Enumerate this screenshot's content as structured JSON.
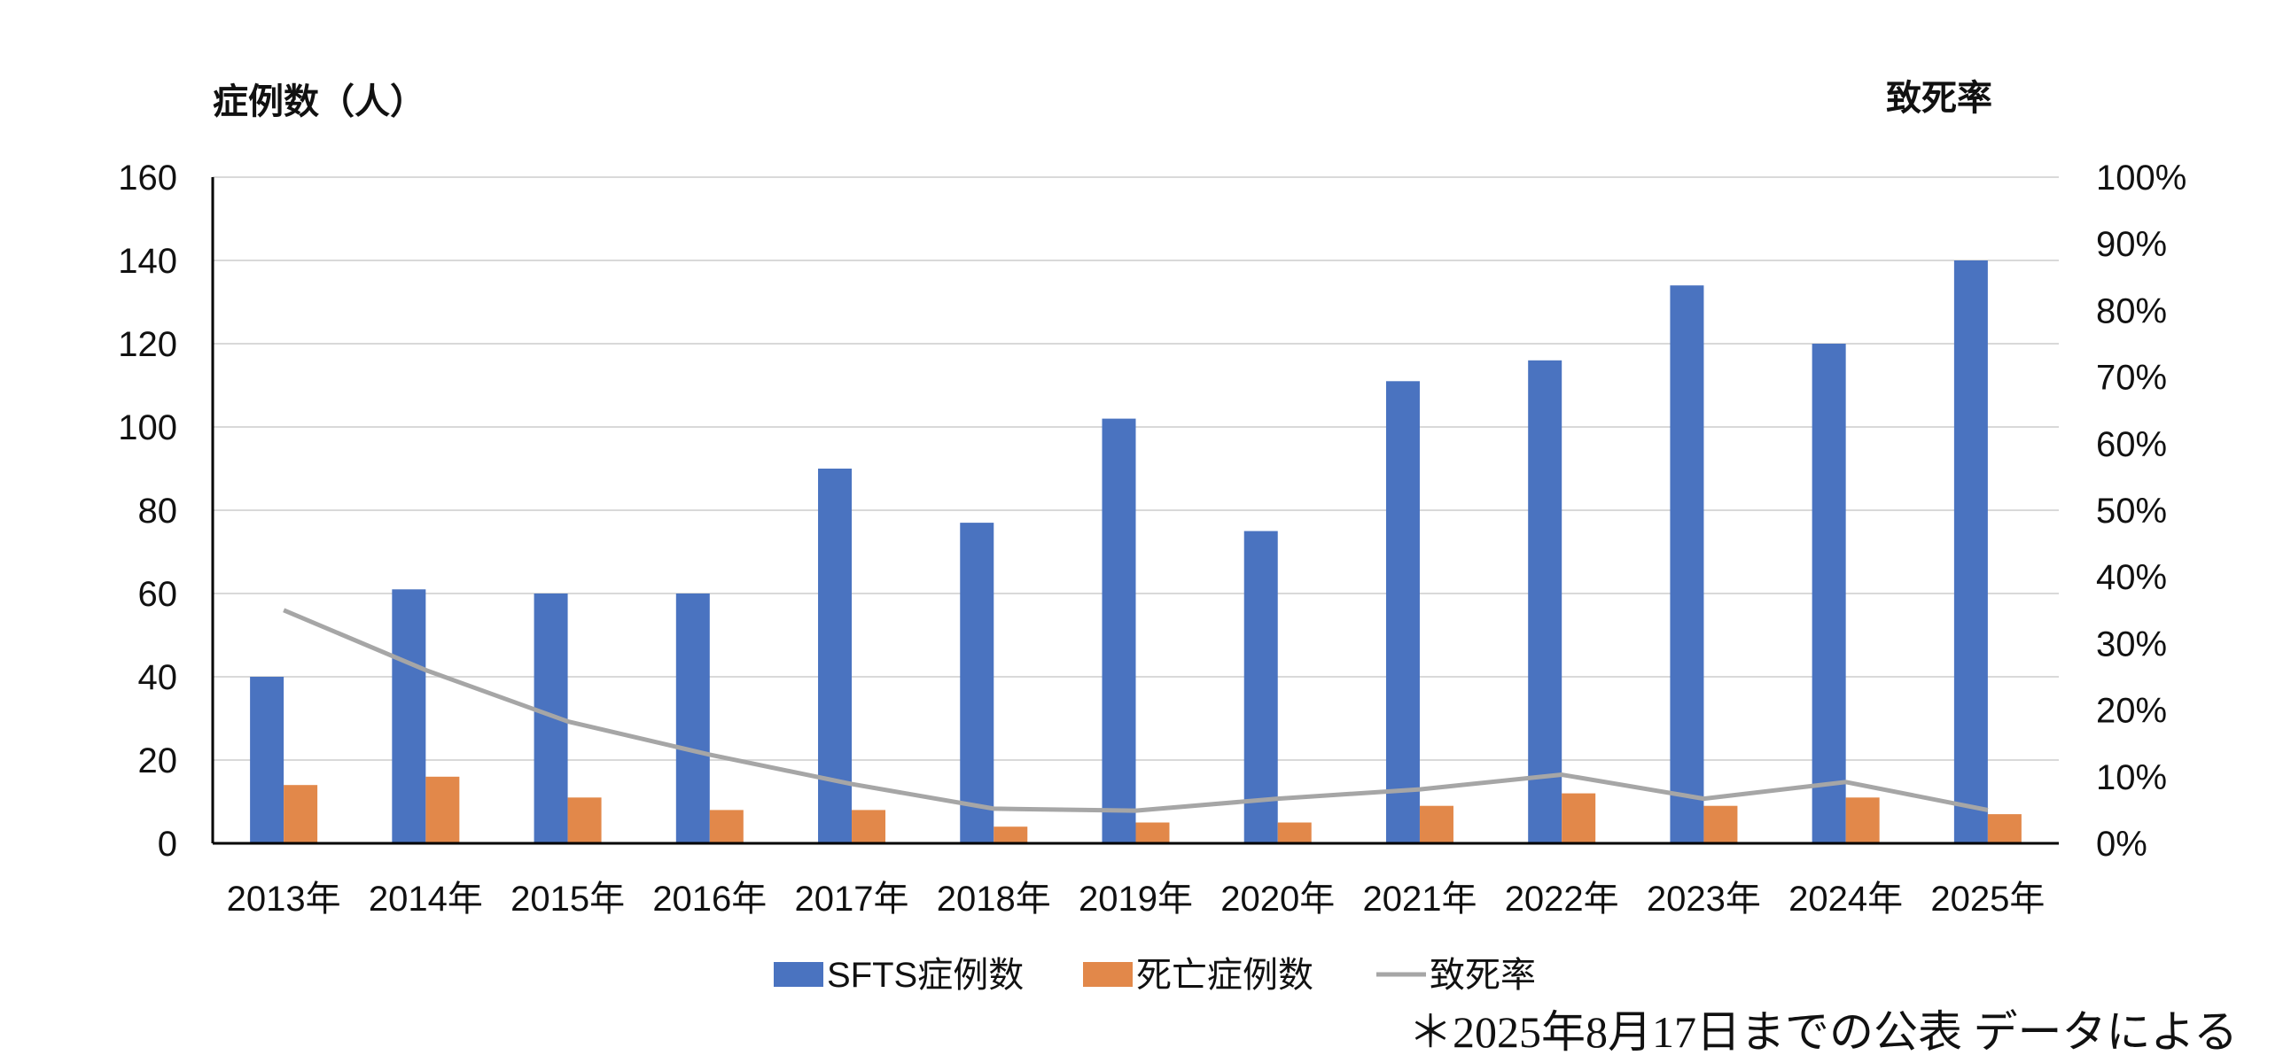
{
  "chart_data": {
    "type": "bar",
    "categories": [
      "2013年",
      "2014年",
      "2015年",
      "2016年",
      "2017年",
      "2018年",
      "2019年",
      "2020年",
      "2021年",
      "2022年",
      "2023年",
      "2024年",
      "2025年"
    ],
    "series": [
      {
        "name": "SFTS症例数",
        "kind": "bar",
        "axis": "left",
        "color": "#4a73c0",
        "values": [
          40,
          61,
          60,
          60,
          90,
          77,
          102,
          75,
          111,
          116,
          134,
          120,
          140
        ]
      },
      {
        "name": "死亡症例数",
        "kind": "bar",
        "axis": "left",
        "color": "#e2884a",
        "values": [
          14,
          16,
          11,
          8,
          8,
          4,
          5,
          5,
          9,
          12,
          9,
          11,
          7
        ]
      },
      {
        "name": "致死率",
        "kind": "line",
        "axis": "right",
        "color": "#a6a6a6",
        "values": [
          35,
          26,
          18.3,
          13.3,
          8.9,
          5.2,
          4.9,
          6.7,
          8.1,
          10.3,
          6.7,
          9.2,
          5
        ]
      }
    ],
    "ylabel": "症例数（人）",
    "ylabel_right": "致死率",
    "ylim": [
      0,
      160
    ],
    "yticks": [
      "0",
      "20",
      "40",
      "60",
      "80",
      "100",
      "120",
      "140",
      "160"
    ],
    "ylim_right": [
      0,
      100
    ],
    "yticks_right": [
      "0%",
      "10%",
      "20%",
      "30%",
      "40%",
      "50%",
      "60%",
      "70%",
      "80%",
      "90%",
      "100%"
    ],
    "grid": true,
    "legend_position": "bottom",
    "annotation": "＊2025年8月17日までの公表 データによる"
  }
}
